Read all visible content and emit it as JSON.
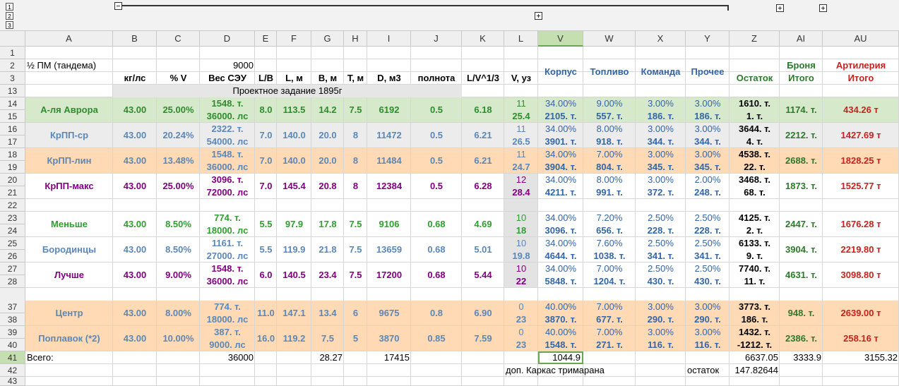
{
  "group_buttons": [
    "1",
    "2",
    "3"
  ],
  "column_headers": [
    "A",
    "B",
    "C",
    "D",
    "E",
    "F",
    "G",
    "H",
    "I",
    "J",
    "K",
    "L",
    "V",
    "W",
    "X",
    "Y",
    "Z",
    "AI",
    "AU"
  ],
  "row_numbers": [
    "1",
    "2",
    "3",
    "13",
    "14",
    "15",
    "16",
    "17",
    "18",
    "19",
    "20",
    "21",
    "22",
    "23",
    "24",
    "25",
    "26",
    "27",
    "28",
    "37",
    "38",
    "39",
    "40",
    "41",
    "42",
    "43"
  ],
  "header": {
    "a2": "½ ПМ (тандема)",
    "d2": "9000",
    "row3": [
      "кг/лс",
      "% V",
      "Вес СЭУ",
      "L/B",
      "L, м",
      "B, м",
      "T, м",
      "D, м3",
      "полнота",
      "L/V^1/3",
      "V, уз"
    ],
    "groups": [
      "Корпус",
      "Топливо",
      "Команда",
      "Прочее"
    ],
    "remainder": "Остаток",
    "armor": [
      "Броня",
      "Итого"
    ],
    "artillery": [
      "Артилерия",
      "Итого"
    ]
  },
  "task": "Проектное задание 1895г",
  "ships": [
    {
      "name": "А-ля Аврора",
      "B": "43.00",
      "C": "25.00%",
      "D": [
        "1548. т.",
        "36000. лс"
      ],
      "E": "8.0",
      "F": "113.5",
      "G": "14.2",
      "H": "7.5",
      "I": "6192",
      "J": "0.5",
      "K": "6.18",
      "L": [
        "11",
        "25.4"
      ],
      "V": [
        "34.00%",
        "2105. т."
      ],
      "W": [
        "9.00%",
        "557. т."
      ],
      "X": [
        "3.00%",
        "186. т."
      ],
      "Y": [
        "3.00%",
        "186. т."
      ],
      "Z": [
        "1610. т.",
        "1. т."
      ],
      "AI": "1174. т.",
      "AU": "434.26 т"
    },
    {
      "name": "КрПП-ср",
      "B": "43.00",
      "C": "20.24%",
      "D": [
        "2322. т.",
        "54000. лс"
      ],
      "E": "7.0",
      "F": "140.0",
      "G": "20.0",
      "H": "8",
      "I": "11472",
      "J": "0.5",
      "K": "6.21",
      "L": [
        "11",
        "26.5"
      ],
      "V": [
        "34.00%",
        "3901. т."
      ],
      "W": [
        "8.00%",
        "918. т."
      ],
      "X": [
        "3.00%",
        "344. т."
      ],
      "Y": [
        "3.00%",
        "344. т."
      ],
      "Z": [
        "3644. т.",
        "4. т."
      ],
      "AI": "2212. т.",
      "AU": "1427.69 т"
    },
    {
      "name": "КрПП-лин",
      "B": "43.00",
      "C": "13.48%",
      "D": [
        "1548. т.",
        "36000. лс"
      ],
      "E": "7.0",
      "F": "140.0",
      "G": "20.0",
      "H": "8",
      "I": "11484",
      "J": "0.5",
      "K": "6.21",
      "L": [
        "11",
        "24.7"
      ],
      "V": [
        "34.00%",
        "3904. т."
      ],
      "W": [
        "7.00%",
        "804. т."
      ],
      "X": [
        "3.00%",
        "345. т."
      ],
      "Y": [
        "3.00%",
        "345. т."
      ],
      "Z": [
        "4538. т.",
        "22. т."
      ],
      "AI": "2688. т.",
      "AU": "1828.25 т"
    },
    {
      "name": "КрПП-макс",
      "B": "43.00",
      "C": "25.00%",
      "D": [
        "3096. т.",
        "72000. лс"
      ],
      "E": "7.0",
      "F": "145.4",
      "G": "20.8",
      "H": "8",
      "I": "12384",
      "J": "0.5",
      "K": "6.28",
      "L": [
        "12",
        "28.4"
      ],
      "V": [
        "34.00%",
        "4211. т."
      ],
      "W": [
        "8.00%",
        "991. т."
      ],
      "X": [
        "3.00%",
        "372. т."
      ],
      "Y": [
        "2.00%",
        "248. т."
      ],
      "Z": [
        "3468. т.",
        "68. т."
      ],
      "AI": "1873. т.",
      "AU": "1525.77 т"
    },
    {
      "name": "Меньше",
      "B": "43.00",
      "C": "8.50%",
      "D": [
        "774. т.",
        "18000. лс"
      ],
      "E": "5.5",
      "F": "97.9",
      "G": "17.8",
      "H": "7.5",
      "I": "9106",
      "J": "0.68",
      "K": "4.69",
      "L": [
        "10",
        "18"
      ],
      "V": [
        "34.00%",
        "3096. т."
      ],
      "W": [
        "7.20%",
        "656. т."
      ],
      "X": [
        "2.50%",
        "228. т."
      ],
      "Y": [
        "2.50%",
        "228. т."
      ],
      "Z": [
        "4125. т.",
        "2. т."
      ],
      "AI": "2447. т.",
      "AU": "1676.28 т"
    },
    {
      "name": "Бородинцы",
      "B": "43.00",
      "C": "8.50%",
      "D": [
        "1161. т.",
        "27000. лс"
      ],
      "E": "5.5",
      "F": "119.9",
      "G": "21.8",
      "H": "7.5",
      "I": "13659",
      "J": "0.68",
      "K": "5.01",
      "L": [
        "10",
        "19.8"
      ],
      "V": [
        "34.00%",
        "4644. т."
      ],
      "W": [
        "7.60%",
        "1038. т."
      ],
      "X": [
        "2.50%",
        "341. т."
      ],
      "Y": [
        "2.50%",
        "341. т."
      ],
      "Z": [
        "6133. т.",
        "9. т."
      ],
      "AI": "3904. т.",
      "AU": "2219.80 т"
    },
    {
      "name": "Лучше",
      "B": "43.00",
      "C": "9.00%",
      "D": [
        "1548. т.",
        "36000. лс"
      ],
      "E": "6.0",
      "F": "140.5",
      "G": "23.4",
      "H": "7.5",
      "I": "17200",
      "J": "0.68",
      "K": "5.44",
      "L": [
        "10",
        "22"
      ],
      "V": [
        "34.00%",
        "5848. т."
      ],
      "W": [
        "7.00%",
        "1204. т."
      ],
      "X": [
        "2.50%",
        "430. т."
      ],
      "Y": [
        "2.50%",
        "430. т."
      ],
      "Z": [
        "7740. т.",
        "11. т."
      ],
      "AI": "4631. т.",
      "AU": "3098.80 т"
    },
    {
      "name": "Центр",
      "B": "43.00",
      "C": "8.00%",
      "D": [
        "774. т.",
        "18000. лс"
      ],
      "E": "11.0",
      "F": "147.1",
      "G": "13.4",
      "H": "6",
      "I": "9675",
      "J": "0.8",
      "K": "6.90",
      "L": [
        "0",
        "23"
      ],
      "V": [
        "40.00%",
        "3870. т."
      ],
      "W": [
        "7.00%",
        "677. т."
      ],
      "X": [
        "3.00%",
        "290. т."
      ],
      "Y": [
        "3.00%",
        "290. т."
      ],
      "Z": [
        "3773. т.",
        "186. т."
      ],
      "AI": "948. т.",
      "AU": "2639.00 т"
    },
    {
      "name": "Поплавок (*2)",
      "B": "43.00",
      "C": "10.00%",
      "D": [
        "387. т.",
        "9000. лс"
      ],
      "E": "16.0",
      "F": "119.2",
      "G": "7.5",
      "H": "5",
      "I": "3870",
      "J": "0.85",
      "K": "7.59",
      "L": [
        "0",
        "23"
      ],
      "V": [
        "40.00%",
        "1548. т."
      ],
      "W": [
        "7.00%",
        "271. т."
      ],
      "X": [
        "3.00%",
        "116. т."
      ],
      "Y": [
        "3.00%",
        "116. т."
      ],
      "Z": [
        "1432. т.",
        "-1212. т."
      ],
      "AI": "2386. т.",
      "AU": "258.16 т"
    }
  ],
  "totals": {
    "A": "Всего:",
    "D": "36000",
    "G": "28.27",
    "I": "17415",
    "V": "1044.9",
    "Z": "6637.05",
    "AI": "3333.9",
    "AU": "3155.32"
  },
  "notes": {
    "L": "доп. Каркас тримарана",
    "Y": "остаток",
    "Z": "147.82644"
  }
}
